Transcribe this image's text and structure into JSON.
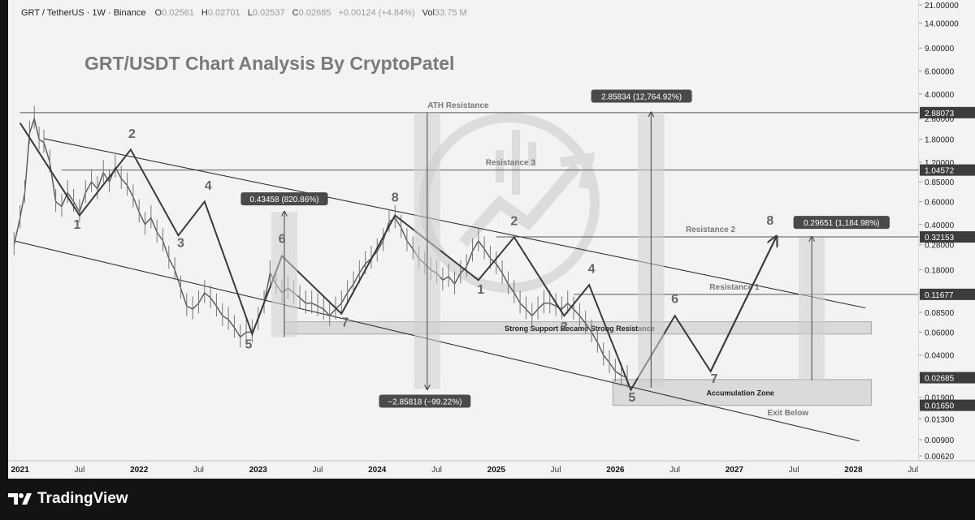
{
  "header": {
    "symbol": "GRT / TetherUS · 1W · Binance",
    "o_label": "O",
    "o_value": "0.02561",
    "h_label": "H",
    "h_value": "0.02701",
    "l_label": "L",
    "l_value": "0.02537",
    "c_label": "C",
    "c_value": "0.02685",
    "change": "+0.00124 (+4.84%)",
    "vol_label": "Vol",
    "vol_value": "33.75 M"
  },
  "footer": {
    "brand": "TradingView"
  },
  "colors": {
    "background": "#f3f3f3",
    "line": "#3a3a3a",
    "text": "#222222",
    "label_box": "#4a4a4a",
    "footer": "#131313"
  },
  "chart_data": {
    "type": "line",
    "title": "GRT/USDT Chart Analysis By CryptoPatel",
    "y_scale": "log",
    "ylim": [
      0.0062,
      21.0
    ],
    "xlim": [
      2020.9,
      2028.55
    ],
    "y_ticks": [
      "21.00000",
      "14.00000",
      "9.00000",
      "6.00000",
      "4.00000",
      "2.60000",
      "1.80000",
      "1.20000",
      "0.85000",
      "0.60000",
      "0.40000",
      "0.28000",
      "0.18000",
      "0.12000",
      "0.08500",
      "0.06000",
      "0.04000",
      "0.02800",
      "0.01900",
      "0.01300",
      "0.00900",
      "0.00620"
    ],
    "x_ticks": [
      {
        "label": "2021",
        "year": true
      },
      {
        "label": "Jul",
        "year": false
      },
      {
        "label": "2022",
        "year": true
      },
      {
        "label": "Jul",
        "year": false
      },
      {
        "label": "2023",
        "year": true
      },
      {
        "label": "Jul",
        "year": false
      },
      {
        "label": "2024",
        "year": true
      },
      {
        "label": "Jul",
        "year": false
      },
      {
        "label": "2025",
        "year": true
      },
      {
        "label": "Jul",
        "year": false
      },
      {
        "label": "2026",
        "year": true
      },
      {
        "label": "Jul",
        "year": false
      },
      {
        "label": "2027",
        "year": true
      },
      {
        "label": "Jul",
        "year": false
      },
      {
        "label": "2028",
        "year": true
      },
      {
        "label": "Jul",
        "year": false
      }
    ],
    "price_labels": [
      {
        "value": "2.88073",
        "y": 2.88073
      },
      {
        "value": "1.04572",
        "y": 1.04572
      },
      {
        "value": "0.32153",
        "y": 0.32153
      },
      {
        "value": "0.11677",
        "y": 0.11677
      },
      {
        "value": "0.02685",
        "y": 0.02685
      },
      {
        "value": "0.01650",
        "y": 0.0165
      }
    ],
    "price_series": {
      "name": "GRT/USDT weekly close",
      "x": [
        2020.95,
        2021.0,
        2021.04,
        2021.08,
        2021.12,
        2021.16,
        2021.2,
        2021.25,
        2021.3,
        2021.35,
        2021.4,
        2021.45,
        2021.5,
        2021.55,
        2021.6,
        2021.65,
        2021.7,
        2021.75,
        2021.8,
        2021.85,
        2021.9,
        2021.95,
        2022.0,
        2022.05,
        2022.1,
        2022.15,
        2022.2,
        2022.25,
        2022.3,
        2022.35,
        2022.4,
        2022.45,
        2022.5,
        2022.55,
        2022.6,
        2022.65,
        2022.7,
        2022.75,
        2022.8,
        2022.85,
        2022.9,
        2022.95,
        2023.0,
        2023.05,
        2023.1,
        2023.15,
        2023.2,
        2023.25,
        2023.3,
        2023.35,
        2023.4,
        2023.45,
        2023.5,
        2023.55,
        2023.6,
        2023.65,
        2023.7,
        2023.75,
        2023.8,
        2023.85,
        2023.9,
        2023.95,
        2024.0,
        2024.05,
        2024.1,
        2024.15,
        2024.2,
        2024.25,
        2024.3,
        2024.35,
        2024.4,
        2024.45,
        2024.5,
        2024.55,
        2024.6,
        2024.65,
        2024.7,
        2024.75,
        2024.8,
        2024.85,
        2024.9,
        2024.95,
        2025.0,
        2025.05,
        2025.1,
        2025.15,
        2025.2,
        2025.25,
        2025.3,
        2025.35,
        2025.4,
        2025.45,
        2025.5,
        2025.55,
        2025.6,
        2025.65,
        2025.7,
        2025.75,
        2025.8,
        2025.85,
        2025.9,
        2025.95,
        2026.0,
        2026.05,
        2026.1
      ],
      "values": [
        0.28,
        0.45,
        0.7,
        2.0,
        2.6,
        1.8,
        1.7,
        1.2,
        0.6,
        0.55,
        0.7,
        0.6,
        0.5,
        0.7,
        0.85,
        0.75,
        1.0,
        0.85,
        1.1,
        0.9,
        0.8,
        0.65,
        0.5,
        0.4,
        0.45,
        0.35,
        0.3,
        0.22,
        0.18,
        0.13,
        0.095,
        0.09,
        0.1,
        0.12,
        0.11,
        0.095,
        0.08,
        0.075,
        0.065,
        0.055,
        0.06,
        0.06,
        0.075,
        0.1,
        0.17,
        0.14,
        0.12,
        0.13,
        0.12,
        0.11,
        0.1,
        0.1,
        0.095,
        0.09,
        0.08,
        0.09,
        0.1,
        0.12,
        0.14,
        0.17,
        0.2,
        0.22,
        0.25,
        0.3,
        0.42,
        0.45,
        0.38,
        0.3,
        0.26,
        0.22,
        0.2,
        0.18,
        0.17,
        0.15,
        0.16,
        0.14,
        0.17,
        0.19,
        0.25,
        0.3,
        0.26,
        0.22,
        0.2,
        0.17,
        0.14,
        0.12,
        0.1,
        0.09,
        0.08,
        0.09,
        0.1,
        0.1,
        0.095,
        0.09,
        0.1,
        0.09,
        0.08,
        0.07,
        0.06,
        0.05,
        0.04,
        0.035,
        0.03,
        0.028,
        0.02685
      ]
    },
    "wave_path": [
      {
        "x": 2021.0,
        "y": 2.4
      },
      {
        "x": 2021.5,
        "y": 0.47
      },
      {
        "x": 2021.93,
        "y": 1.5
      },
      {
        "x": 2022.33,
        "y": 0.33
      },
      {
        "x": 2022.55,
        "y": 0.6
      },
      {
        "x": 2022.95,
        "y": 0.058
      },
      {
        "x": 2023.2,
        "y": 0.23
      },
      {
        "x": 2023.7,
        "y": 0.083
      },
      {
        "x": 2024.15,
        "y": 0.47
      },
      {
        "x": 2024.85,
        "y": 0.15
      },
      {
        "x": 2025.15,
        "y": 0.32
      },
      {
        "x": 2025.57,
        "y": 0.08
      },
      {
        "x": 2025.78,
        "y": 0.138
      },
      {
        "x": 2026.13,
        "y": 0.0217
      },
      {
        "x": 2026.5,
        "y": 0.08
      },
      {
        "x": 2026.8,
        "y": 0.03
      },
      {
        "x": 2027.35,
        "y": 0.32
      }
    ],
    "wave_labels": [
      {
        "text": "1",
        "x": 2021.48,
        "y": 0.37
      },
      {
        "text": "2",
        "x": 2021.94,
        "y": 1.85
      },
      {
        "text": "3",
        "x": 2022.35,
        "y": 0.27
      },
      {
        "text": "4",
        "x": 2022.58,
        "y": 0.74
      },
      {
        "text": "5",
        "x": 2022.92,
        "y": 0.045
      },
      {
        "text": "6",
        "x": 2023.2,
        "y": 0.29
      },
      {
        "text": "7",
        "x": 2023.73,
        "y": 0.066
      },
      {
        "text": "8",
        "x": 2024.15,
        "y": 0.6
      },
      {
        "text": "1",
        "x": 2024.87,
        "y": 0.118
      },
      {
        "text": "2",
        "x": 2025.15,
        "y": 0.395
      },
      {
        "text": "3",
        "x": 2025.57,
        "y": 0.061
      },
      {
        "text": "4",
        "x": 2025.8,
        "y": 0.17
      },
      {
        "text": "5",
        "x": 2026.14,
        "y": 0.0176
      },
      {
        "text": "6",
        "x": 2026.5,
        "y": 0.1
      },
      {
        "text": "7",
        "x": 2026.83,
        "y": 0.0245
      },
      {
        "text": "8",
        "x": 2027.3,
        "y": 0.4
      }
    ],
    "channel_lines": [
      {
        "x1": 2021.2,
        "y1": 1.82,
        "x2": 2028.1,
        "y2": 0.092
      },
      {
        "x1": 2020.95,
        "y1": 0.3,
        "x2": 2028.05,
        "y2": 0.0088
      }
    ],
    "horizontal_levels": [
      {
        "label": "ATH Resistance",
        "value": 2.88073,
        "x1": 2021.0,
        "label_x": 2024.68
      },
      {
        "label": "Resistance 3",
        "value": 1.04572,
        "x1": 2021.35,
        "label_x": 2025.12
      },
      {
        "label": "Resistance 2",
        "value": 0.32153,
        "x1": 2025.0,
        "label_x": 2026.8
      },
      {
        "label": "Resistance 1",
        "value": 0.11677,
        "x1": 2025.65,
        "label_x": 2027.0
      }
    ],
    "zones": [
      {
        "label": "Strong Support Became Strong Resistance",
        "y1": 0.072,
        "y2": 0.058,
        "x1": 2023.22,
        "x2": 2028.15
      },
      {
        "label": "Accumulation Zone",
        "y1": 0.026,
        "y2": 0.0165,
        "x1": 2025.98,
        "x2": 2028.15
      }
    ],
    "annotations": [
      {
        "text": "Exit Below",
        "x": 2027.45,
        "y": 0.0138
      }
    ],
    "measurements": [
      {
        "label": "0.43458 (820.86%)",
        "x": 2023.22,
        "y_from": 0.055,
        "y_to": 0.5,
        "direction": "up",
        "label_x": 2023.22,
        "label_y": 0.62
      },
      {
        "label": "−2.85818 (−99.22%)",
        "x": 2024.42,
        "y_from": 2.88,
        "y_to": 0.022,
        "direction": "down",
        "label_x": 2024.4,
        "label_y": 0.0175
      },
      {
        "label": "2.85834 (12,764.92%)",
        "x": 2026.3,
        "y_from": 0.0225,
        "y_to": 2.88,
        "direction": "up",
        "label_x": 2026.22,
        "label_y": 3.8
      },
      {
        "label": "0.29651 (1,184.98%)",
        "x": 2027.65,
        "y_from": 0.0255,
        "y_to": 0.32,
        "direction": "up",
        "label_x": 2027.9,
        "label_y": 0.41
      }
    ]
  }
}
